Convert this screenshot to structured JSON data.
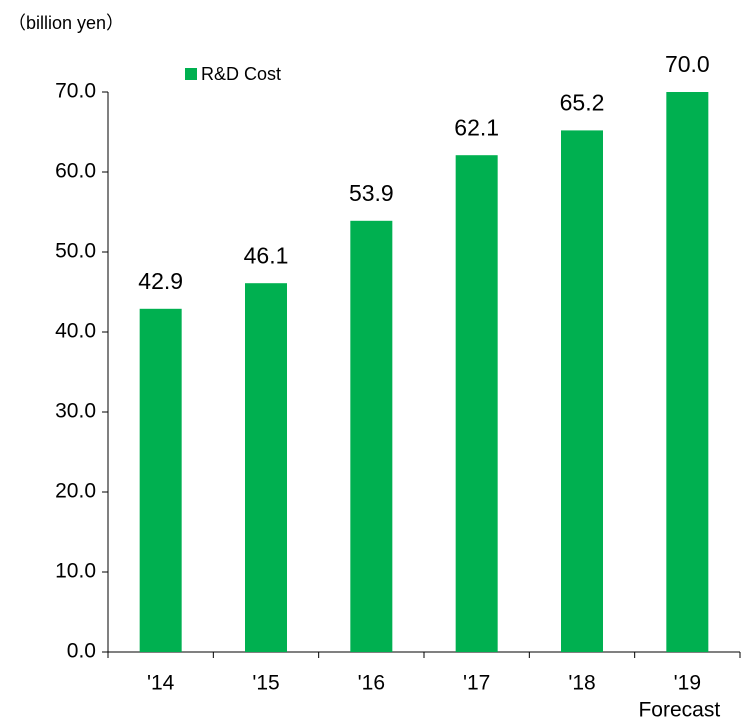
{
  "chart_data": {
    "type": "bar",
    "y_unit_label": "（billion yen）",
    "categories": [
      "'14",
      "'15",
      "'16",
      "'17",
      "'18",
      "'19"
    ],
    "annotations": [
      "Forecast"
    ],
    "series": [
      {
        "name": "R&D Cost",
        "color": "#00b050",
        "values": [
          42.9,
          46.1,
          53.9,
          62.1,
          65.2,
          70.0
        ],
        "value_labels": [
          "42.9",
          "46.1",
          "53.9",
          "62.1",
          "65.2",
          "70.0"
        ]
      }
    ],
    "ylim": [
      0,
      70
    ],
    "yticks": [
      {
        "value": 0,
        "label": "0.0"
      },
      {
        "value": 10,
        "label": "10.0"
      },
      {
        "value": 20,
        "label": "20.0"
      },
      {
        "value": 30,
        "label": "30.0"
      },
      {
        "value": 40,
        "label": "40.0"
      },
      {
        "value": 50,
        "label": "50.0"
      },
      {
        "value": 60,
        "label": "60.0"
      },
      {
        "value": 70,
        "label": "70.0"
      }
    ],
    "grid": false,
    "legend": "top-left"
  }
}
